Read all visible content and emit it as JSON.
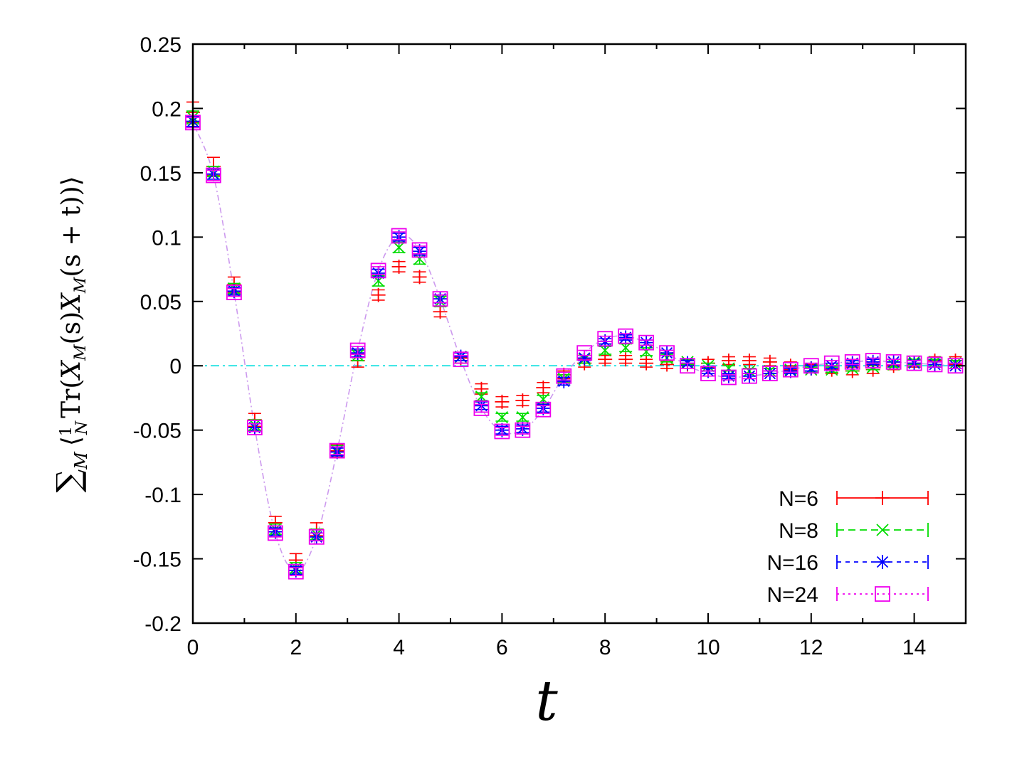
{
  "chart_data": {
    "type": "scatter",
    "title": "",
    "xlabel": "t",
    "ylabel": "∑M ⟨(1/N) Tr(XM(s) XM(s+t))⟩",
    "ylabel_parts": {
      "sum": "∑",
      "sum_sub": "M",
      "open": "⟨",
      "frac_num": "1",
      "frac_den": "N",
      "tr": "Tr(",
      "x1": "X",
      "x1_sub": "M",
      "s_arg": "(s)",
      "x2": "X",
      "x2_sub": "M",
      "st_arg": "(s + t))",
      "close": "⟩"
    },
    "xlim": [
      0,
      15
    ],
    "ylim": [
      -0.2,
      0.25
    ],
    "xticks": [
      0,
      2,
      4,
      6,
      8,
      10,
      12,
      14
    ],
    "yticks": [
      0.25,
      0.2,
      0.15,
      0.1,
      0.05,
      0,
      -0.05,
      -0.1,
      -0.15,
      -0.2
    ],
    "ytick_labels": [
      "0.25",
      "0.2",
      "0.15",
      "0.1",
      "0.05",
      "0",
      "-0.05",
      "-0.1",
      "-0.15",
      "-0.2"
    ],
    "grid": false,
    "legend_position": "bottom-right",
    "x": [
      0,
      0.4,
      0.8,
      1.2,
      1.6,
      2.0,
      2.4,
      2.8,
      3.2,
      3.6,
      4.0,
      4.4,
      4.8,
      5.2,
      5.6,
      6.0,
      6.4,
      6.8,
      7.2,
      7.6,
      8.0,
      8.4,
      8.8,
      9.2,
      9.6,
      10.0,
      10.4,
      10.8,
      11.2,
      11.6,
      12.0,
      12.4,
      12.8,
      13.2,
      13.6,
      14.0,
      14.4,
      14.8
    ],
    "series": [
      {
        "name": "N=6",
        "color": "#ff0000",
        "marker": "plus",
        "values": [
          0.197,
          0.155,
          0.063,
          -0.042,
          -0.122,
          -0.151,
          -0.127,
          -0.066,
          0.004,
          0.055,
          0.077,
          0.069,
          0.042,
          0.006,
          -0.018,
          -0.028,
          -0.027,
          -0.017,
          -0.007,
          0.002,
          0.005,
          0.005,
          0.002,
          0.001,
          0.001,
          0.002,
          0.004,
          0.004,
          0.003,
          0.0,
          -0.002,
          -0.003,
          -0.004,
          -0.003,
          0.0,
          0.002,
          0.004,
          0.004
        ],
        "errors": [
          0.008,
          0.007,
          0.006,
          0.005,
          0.005,
          0.005,
          0.005,
          0.005,
          0.005,
          0.004,
          0.004,
          0.004,
          0.004,
          0.004,
          0.004,
          0.004,
          0.004,
          0.004,
          0.003,
          0.003,
          0.003,
          0.003,
          0.003,
          0.003,
          0.003,
          0.003,
          0.003,
          0.003,
          0.003,
          0.003,
          0.003,
          0.003,
          0.003,
          0.003,
          0.003,
          0.003,
          0.003,
          0.003
        ]
      },
      {
        "name": "N=8",
        "color": "#00dd00",
        "marker": "cross",
        "values": [
          0.193,
          0.151,
          0.06,
          -0.046,
          -0.127,
          -0.157,
          -0.131,
          -0.066,
          0.008,
          0.066,
          0.092,
          0.083,
          0.05,
          0.007,
          -0.024,
          -0.04,
          -0.04,
          -0.026,
          -0.01,
          0.005,
          0.012,
          0.014,
          0.011,
          0.006,
          0.003,
          0.0,
          -0.002,
          -0.004,
          -0.004,
          -0.003,
          -0.003,
          -0.003,
          -0.002,
          -0.001,
          0.001,
          0.003,
          0.003,
          0.002
        ],
        "errors": [
          0.005,
          0.004,
          0.004,
          0.004,
          0.004,
          0.004,
          0.004,
          0.004,
          0.004,
          0.004,
          0.004,
          0.004,
          0.004,
          0.003,
          0.003,
          0.003,
          0.003,
          0.003,
          0.003,
          0.003,
          0.003,
          0.003,
          0.003,
          0.003,
          0.002,
          0.002,
          0.002,
          0.002,
          0.002,
          0.002,
          0.002,
          0.002,
          0.002,
          0.002,
          0.002,
          0.002,
          0.002,
          0.002
        ]
      },
      {
        "name": "N=16",
        "color": "#0000ff",
        "marker": "star",
        "values": [
          0.19,
          0.149,
          0.058,
          -0.048,
          -0.129,
          -0.159,
          -0.133,
          -0.067,
          0.01,
          0.072,
          0.1,
          0.089,
          0.052,
          0.007,
          -0.031,
          -0.05,
          -0.049,
          -0.033,
          -0.012,
          0.006,
          0.019,
          0.022,
          0.018,
          0.01,
          0.002,
          -0.004,
          -0.008,
          -0.008,
          -0.006,
          -0.004,
          -0.002,
          0.0,
          0.002,
          0.003,
          0.003,
          0.002,
          0.001,
          0.0
        ],
        "errors": [
          0.004,
          0.004,
          0.003,
          0.003,
          0.003,
          0.003,
          0.003,
          0.003,
          0.003,
          0.003,
          0.003,
          0.003,
          0.003,
          0.003,
          0.003,
          0.003,
          0.003,
          0.003,
          0.003,
          0.002,
          0.002,
          0.002,
          0.002,
          0.002,
          0.002,
          0.002,
          0.002,
          0.002,
          0.002,
          0.002,
          0.002,
          0.002,
          0.002,
          0.002,
          0.002,
          0.002,
          0.002,
          0.002
        ]
      },
      {
        "name": "N=24",
        "color": "#ee00ee",
        "marker": "square",
        "values": [
          0.189,
          0.148,
          0.057,
          -0.048,
          -0.13,
          -0.16,
          -0.133,
          -0.066,
          0.012,
          0.074,
          0.101,
          0.09,
          0.052,
          0.005,
          -0.033,
          -0.051,
          -0.05,
          -0.034,
          -0.008,
          0.01,
          0.021,
          0.023,
          0.018,
          0.01,
          0.0,
          -0.006,
          -0.009,
          -0.008,
          -0.006,
          -0.003,
          0.0,
          0.002,
          0.003,
          0.004,
          0.003,
          0.002,
          0.001,
          0.0
        ],
        "errors": [
          0.004,
          0.004,
          0.003,
          0.003,
          0.003,
          0.003,
          0.003,
          0.003,
          0.003,
          0.003,
          0.003,
          0.003,
          0.003,
          0.003,
          0.003,
          0.003,
          0.003,
          0.003,
          0.003,
          0.002,
          0.002,
          0.002,
          0.002,
          0.002,
          0.002,
          0.002,
          0.002,
          0.002,
          0.002,
          0.002,
          0.002,
          0.002,
          0.002,
          0.002,
          0.002,
          0.002,
          0.002,
          0.002
        ]
      }
    ],
    "reference_lines": [
      {
        "kind": "horizontal",
        "y": 0,
        "color": "#00dddd",
        "style": "dash-dot"
      },
      {
        "kind": "fit-curve",
        "color": "#cc99ee",
        "style": "dash-dot"
      }
    ]
  }
}
